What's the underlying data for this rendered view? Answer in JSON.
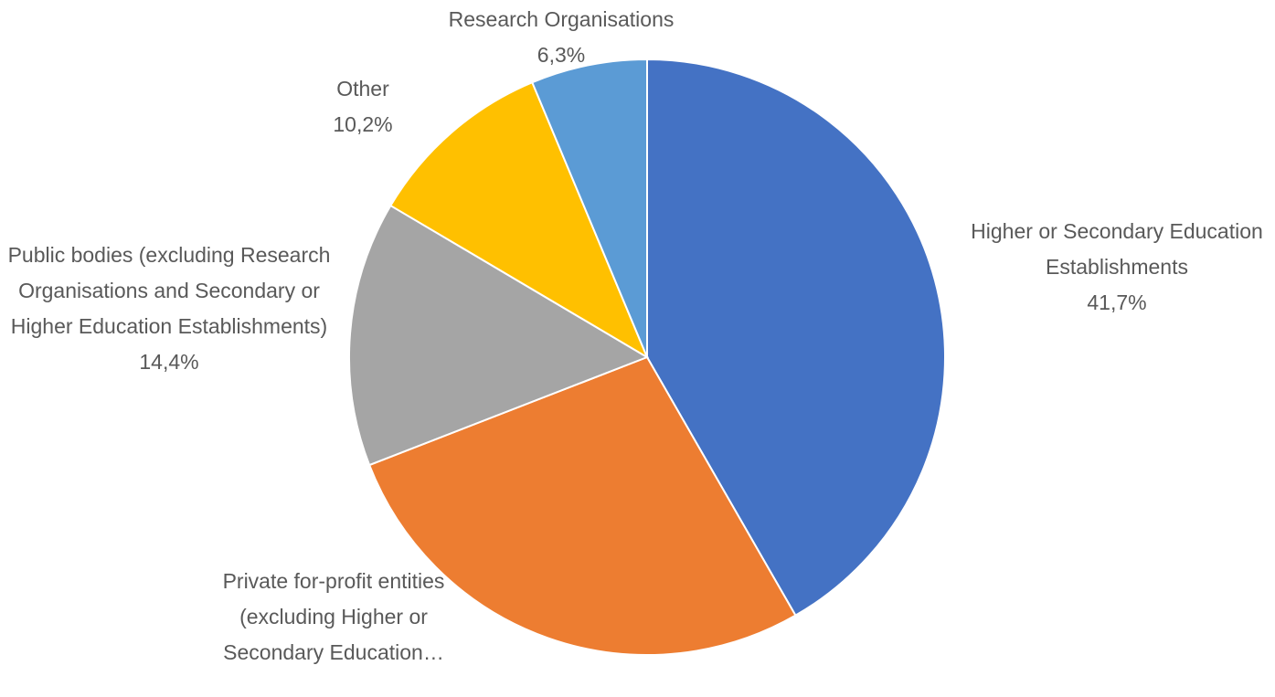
{
  "chart_data": {
    "type": "pie",
    "categories": [
      "Higher or Secondary Education Establishments",
      "Private for-profit entities (excluding Higher or Secondary Education…",
      "Public bodies (excluding Research Organisations and Secondary or Higher Education Establishments)",
      "Other",
      "Research Organisations"
    ],
    "values": [
      41.7,
      27.4,
      14.4,
      10.2,
      6.3
    ],
    "value_labels": [
      "41,7%",
      null,
      "14,4%",
      "10,2%",
      "6,3%"
    ],
    "colors": [
      "#4472c4",
      "#ed7d31",
      "#a5a5a5",
      "#ffc000",
      "#5b9bd5"
    ]
  }
}
